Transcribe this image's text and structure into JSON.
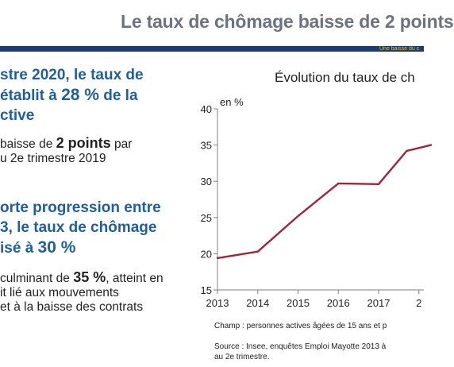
{
  "slide": {
    "title": "Le taux de chômage baisse de 2 points",
    "band_text": "Une baisse du c"
  },
  "left": {
    "b1": {
      "l1": "stre 2020, le taux de",
      "l2a": "établit à ",
      "l2b": "28 %",
      "l2c": " de la",
      "l3": "ctive"
    },
    "b2": {
      "l1a": "baisse de ",
      "l1b": "2 points",
      "l1c": " par",
      "l2": "u 2e trimestre 2019"
    },
    "b3": {
      "l1": "orte progression entre",
      "l2": "3, le taux de chômage",
      "l3a": "isé à ",
      "l3b": "30 %"
    },
    "b4": {
      "l1a": "culminant de ",
      "l1b": "35 %",
      "l1c": ", atteint en",
      "l2": "it lié aux mouvements",
      "l3": "et à la baisse des contrats"
    }
  },
  "chart_data": {
    "type": "line",
    "title": "Évolution du taux de ch",
    "ylabel": "en %",
    "xlim": [
      2013,
      2018.3
    ],
    "ylim": [
      15,
      40
    ],
    "x_ticks": [
      "2013",
      "2014",
      "2015",
      "2016",
      "2017",
      "2"
    ],
    "y_ticks": [
      "15",
      "20",
      "25",
      "30",
      "35",
      "40"
    ],
    "grid": false,
    "color": "#a0243a",
    "series": [
      {
        "x": [
          2013,
          2014,
          2015,
          2016,
          2017,
          2017.7,
          2018.3
        ],
        "values": [
          19.4,
          20.3,
          25.2,
          29.7,
          29.6,
          34.2,
          35.0
        ]
      }
    ]
  },
  "notes": {
    "champ": "Champ : personnes actives âgées de 15 ans et p",
    "source1": "Source : Insee, enquêtes Emploi Mayotte 2013 à",
    "source2": "au 2e trimestre."
  }
}
